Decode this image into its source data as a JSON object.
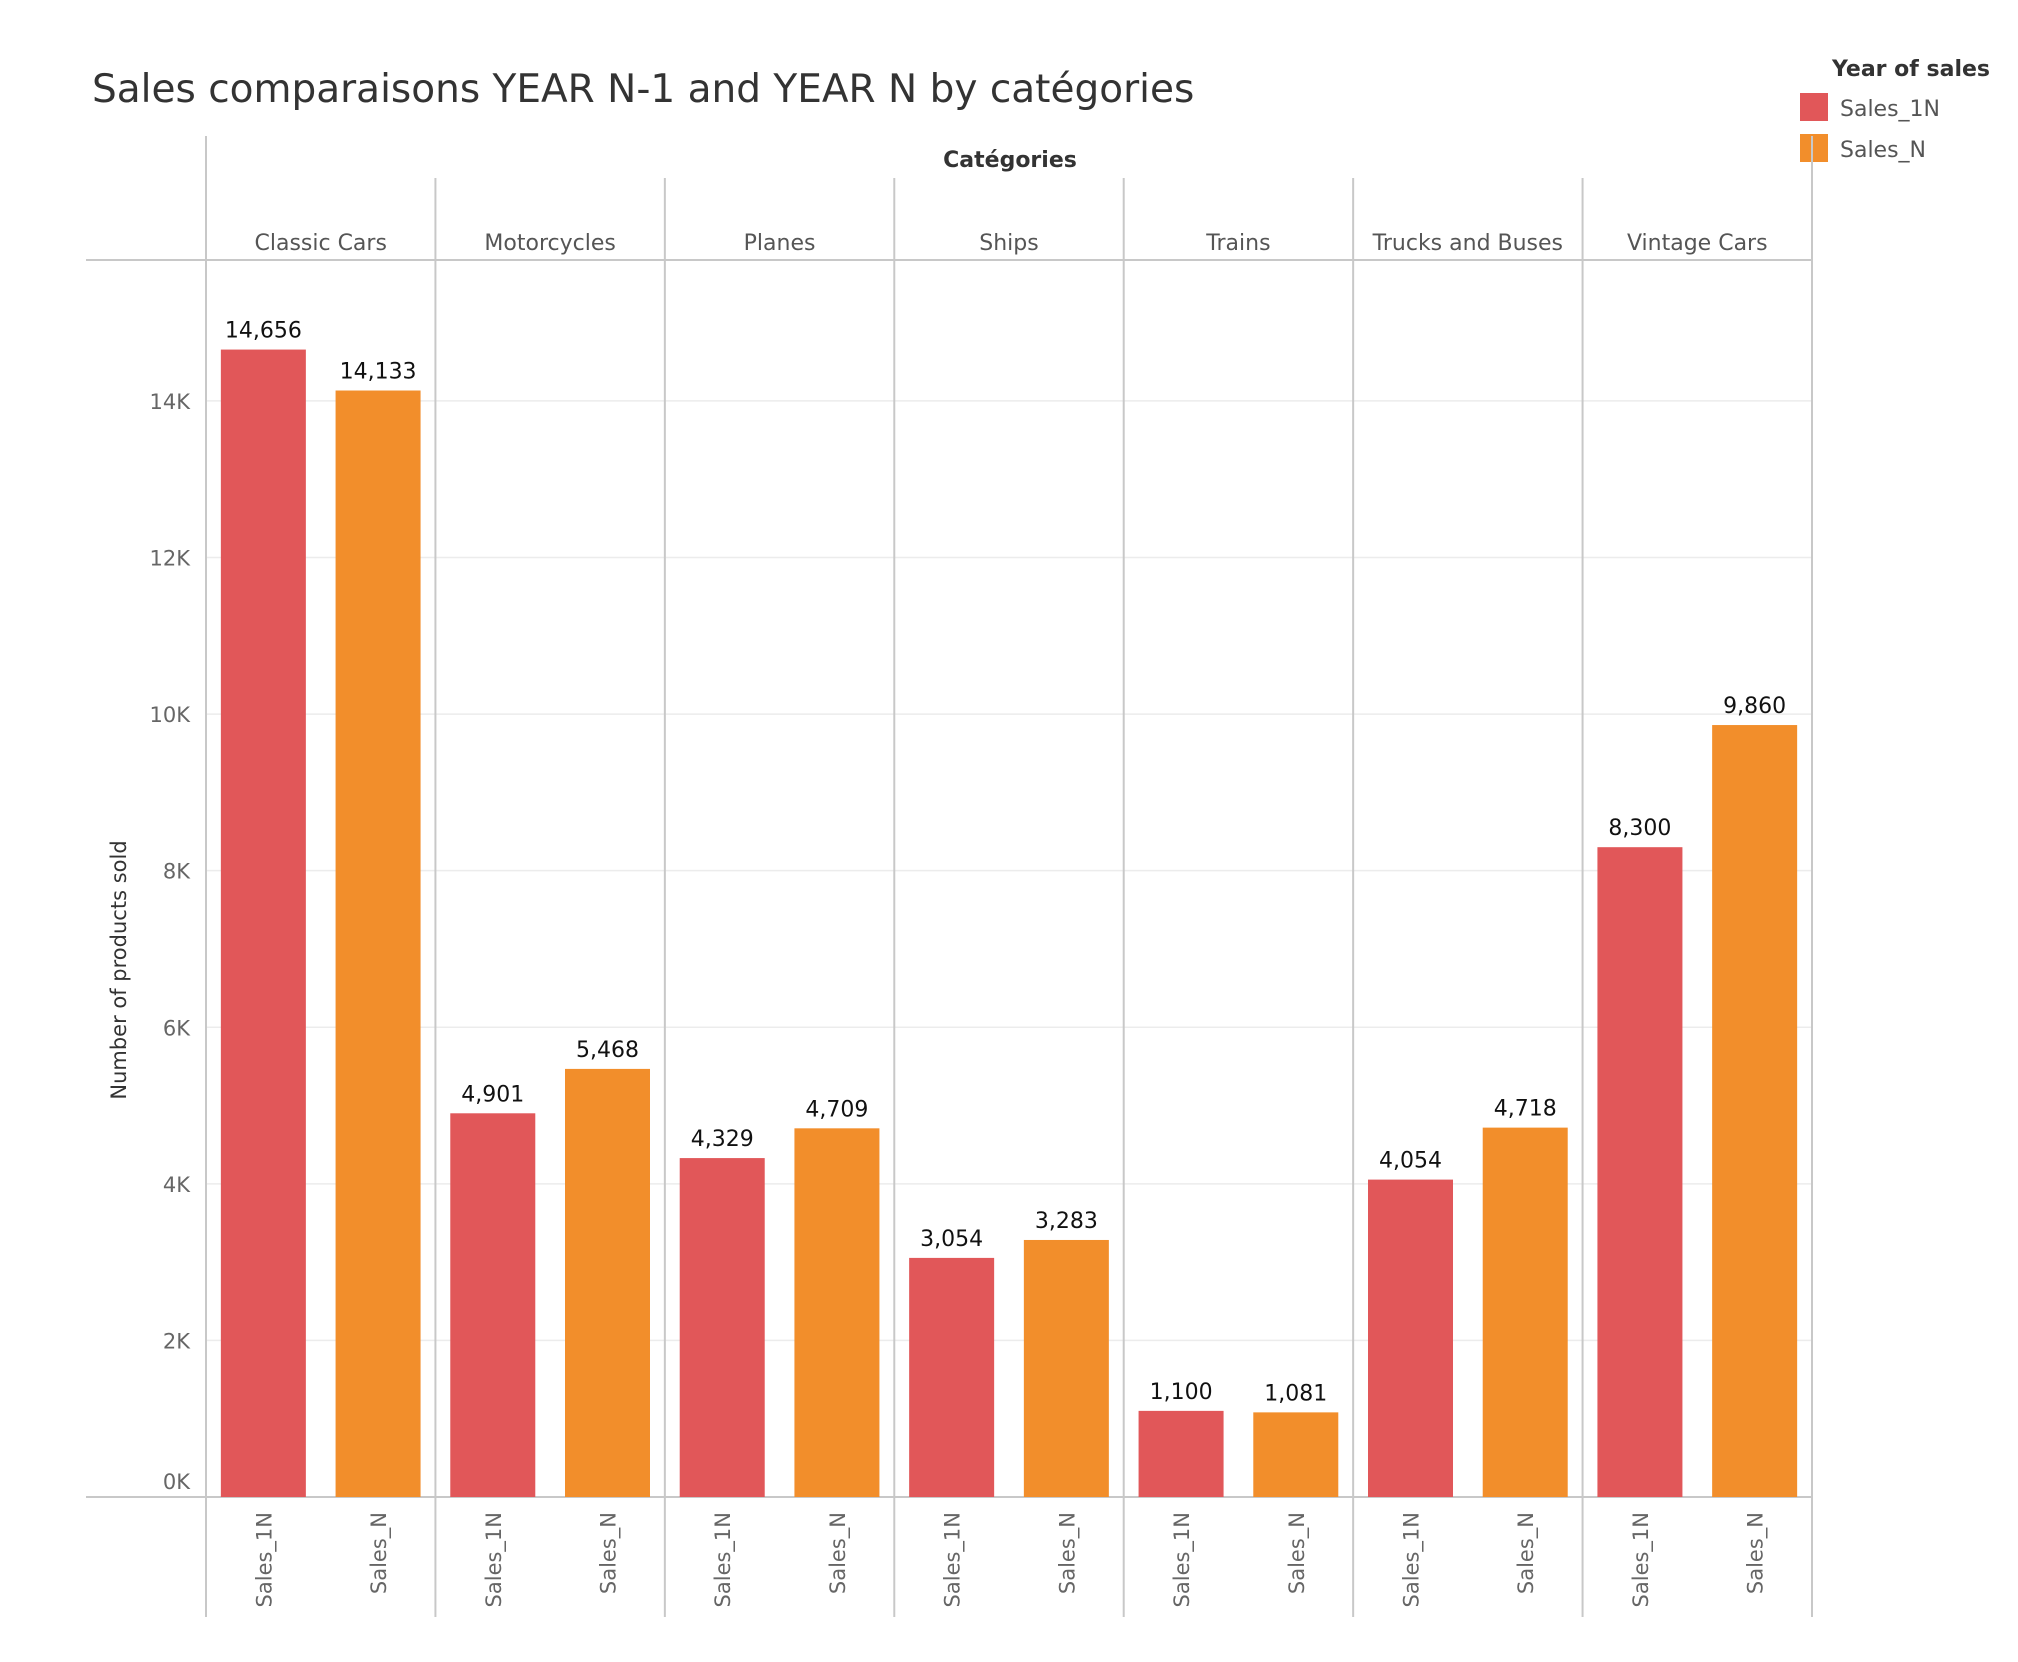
{
  "chart_data": {
    "type": "bar",
    "title": "Sales comparaisons YEAR N-1 and YEAR N by catégories",
    "column_header": "Catégories",
    "ylabel": "Number of products sold",
    "ylim": [
      0,
      15800
    ],
    "yticks": [
      {
        "value": 0,
        "label": "0K"
      },
      {
        "value": 2000,
        "label": "2K"
      },
      {
        "value": 4000,
        "label": "4K"
      },
      {
        "value": 6000,
        "label": "6K"
      },
      {
        "value": 8000,
        "label": "8K"
      },
      {
        "value": 10000,
        "label": "10K"
      },
      {
        "value": 12000,
        "label": "12K"
      },
      {
        "value": 14000,
        "label": "14K"
      }
    ],
    "categories": [
      "Classic Cars",
      "Motorcycles",
      "Planes",
      "Ships",
      "Trains",
      "Trucks and Buses",
      "Vintage Cars"
    ],
    "series": [
      {
        "name": "Sales_1N",
        "color": "#e15759",
        "values": [
          14656,
          4901,
          4329,
          3054,
          1100,
          4054,
          8300
        ],
        "labels": [
          "14,656",
          "4,901",
          "4,329",
          "3,054",
          "1,100",
          "4,054",
          "8,300"
        ]
      },
      {
        "name": "Sales_N",
        "color": "#f28e2b",
        "values": [
          14133,
          5468,
          4709,
          3283,
          1081,
          4718,
          9860
        ],
        "labels": [
          "14,133",
          "5,468",
          "4,709",
          "3,283",
          "1,081",
          "4,718",
          "9,860"
        ]
      }
    ],
    "legend": {
      "title": "Year of sales",
      "position": "top-right"
    }
  }
}
